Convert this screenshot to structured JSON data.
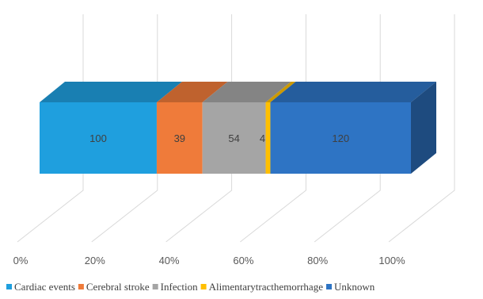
{
  "chart_data": {
    "type": "bar",
    "orientation": "horizontal",
    "stacked": true,
    "three_d": true,
    "title": "",
    "xlabel": "",
    "ylabel": "",
    "x_ticks": [
      "0%",
      "20%",
      "40%",
      "60%",
      "80%",
      "100%"
    ],
    "xlim": [
      0,
      100
    ],
    "grid": true,
    "legend_position": "bottom",
    "series": [
      {
        "name": "Cardiac events",
        "value": 100,
        "label": "100",
        "color": "#1f9fde"
      },
      {
        "name": "Cerebral stroke",
        "value": 39,
        "label": "39",
        "color": "#ef7b3a"
      },
      {
        "name": "Infection",
        "value": 54,
        "label": "54",
        "color": "#a5a5a5"
      },
      {
        "name": "Alimentarytracthemorrhage",
        "value": 4,
        "label": "4",
        "color": "#ffbf00"
      },
      {
        "name": "Unknown",
        "value": 120,
        "label": "120",
        "color": "#2e74c4"
      }
    ]
  }
}
